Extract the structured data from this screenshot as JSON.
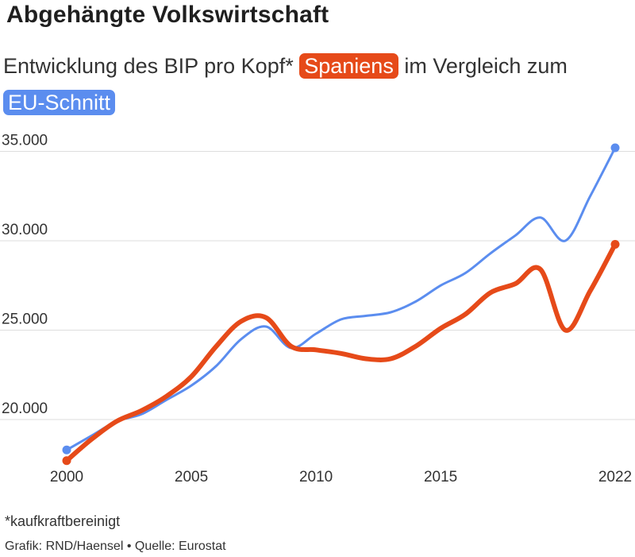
{
  "title": "Abgehängte Volkswirtschaft",
  "subtitle": {
    "part1": "Entwicklung des BIP pro Kopf*",
    "spain": "Spaniens",
    "part2": "im Vergleich zum",
    "eu": "EU-Schnitt"
  },
  "colors": {
    "spain": "#e64a19",
    "eu": "#5b8def",
    "grid": "#dddddd"
  },
  "footnote": "*kaufkraftbereinigt",
  "credit": "Grafik: RND/Haensel • Quelle: Eurostat",
  "chart_data": {
    "type": "line",
    "title": "",
    "xlabel": "",
    "ylabel": "",
    "xlim": [
      2000,
      2022
    ],
    "ylim": [
      17000,
      36000
    ],
    "x_ticks": [
      2000,
      2005,
      2010,
      2015,
      2022
    ],
    "x_tick_labels": [
      "2000",
      "2005",
      "2010",
      "2015",
      "2022"
    ],
    "y_ticks": [
      20000,
      25000,
      30000,
      35000
    ],
    "y_tick_labels": [
      "20.000",
      "25.000",
      "30.000",
      "35.000"
    ],
    "grid": true,
    "legend": "none",
    "x": [
      2000,
      2001,
      2002,
      2003,
      2004,
      2005,
      2006,
      2007,
      2008,
      2009,
      2010,
      2011,
      2012,
      2013,
      2014,
      2015,
      2016,
      2017,
      2018,
      2019,
      2020,
      2021,
      2022
    ],
    "series": [
      {
        "name": "EU-Schnitt",
        "color": "#5b8def",
        "values": [
          18300,
          19100,
          19900,
          20300,
          21100,
          21900,
          23000,
          24500,
          25200,
          24000,
          24800,
          25600,
          25800,
          26000,
          26600,
          27500,
          28200,
          29300,
          30300,
          31300,
          30000,
          32500,
          35200
        ]
      },
      {
        "name": "Spaniens",
        "color": "#e64a19",
        "values": [
          17700,
          18900,
          19900,
          20500,
          21300,
          22400,
          24100,
          25500,
          25700,
          24100,
          23900,
          23700,
          23400,
          23400,
          24100,
          25100,
          25900,
          27100,
          27600,
          28400,
          25000,
          27200,
          29800
        ]
      }
    ]
  }
}
